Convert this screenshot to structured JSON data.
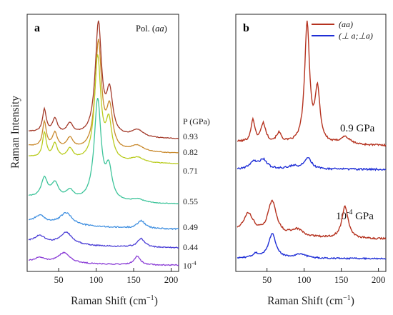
{
  "figure": {
    "y_axis_label": "Raman Intensity",
    "x_axis_unit_tail": "−1",
    "x_axis_label_main": "Raman Shift (cm",
    "x_axis_label_close": ")"
  },
  "chart_data": [
    {
      "panel": "a",
      "type": "line",
      "title": "Pol. (aa)",
      "xlabel": "Raman Shift (cm−1)",
      "ylabel": "Raman Intensity",
      "xlim": [
        8,
        210
      ],
      "x_ticks": [
        "50",
        "100",
        "150",
        "200"
      ],
      "pressure_header": "P (GPa)",
      "series": [
        {
          "name": "0.93",
          "color": "#a33a2a",
          "baseline": 0.93,
          "bg": 0.2,
          "noise": 0.015,
          "peaks": [
            [
              103,
              2.7,
              5
            ],
            [
              118,
              1.0,
              5
            ],
            [
              31,
              0.55,
              3
            ],
            [
              45,
              0.35,
              4
            ],
            [
              65,
              0.25,
              5
            ],
            [
              155,
              0.18,
              10
            ]
          ]
        },
        {
          "name": "0.82",
          "color": "#c98a2e",
          "baseline": 0.82,
          "bg": 0.2,
          "noise": 0.015,
          "peaks": [
            [
              103,
              2.6,
              5
            ],
            [
              118,
              0.95,
              5
            ],
            [
              31,
              0.6,
              3
            ],
            [
              45,
              0.35,
              4
            ],
            [
              65,
              0.25,
              5
            ],
            [
              155,
              0.15,
              10
            ]
          ]
        },
        {
          "name": "0.71",
          "color": "#b9cc1f",
          "baseline": 0.71,
          "bg": 0.2,
          "noise": 0.015,
          "peaks": [
            [
              102,
              2.5,
              5
            ],
            [
              117,
              0.9,
              5
            ],
            [
              31,
              0.6,
              3
            ],
            [
              45,
              0.35,
              4
            ],
            [
              65,
              0.25,
              5
            ],
            [
              155,
              0.12,
              10
            ]
          ]
        },
        {
          "name": "0.55",
          "color": "#3dc49a",
          "baseline": 0.55,
          "bg": 0.18,
          "noise": 0.015,
          "peaks": [
            [
              102,
              2.35,
              5.5
            ],
            [
              117,
              0.7,
              5
            ],
            [
              31,
              0.45,
              5
            ],
            [
              45,
              0.35,
              6
            ],
            [
              65,
              0.2,
              6
            ],
            [
              155,
              0.08,
              10
            ]
          ]
        },
        {
          "name": "0.49",
          "color": "#3f8fe0",
          "baseline": 0.49,
          "bg": 0.1,
          "noise": 0.015,
          "peaks": [
            [
              60,
              0.14,
              10
            ],
            [
              160,
              0.09,
              6
            ],
            [
              25,
              0.08,
              8
            ]
          ]
        },
        {
          "name": "0.44",
          "color": "#4b3fd6",
          "baseline": 0.44,
          "bg": 0.08,
          "noise": 0.013,
          "peaks": [
            [
              60,
              0.14,
              10
            ],
            [
              160,
              0.1,
              6
            ],
            [
              25,
              0.08,
              8
            ]
          ]
        },
        {
          "name": "10-4",
          "color": "#8a3cd6",
          "baseline": 0.0,
          "bg": 0.05,
          "noise": 0.012,
          "peaks": [
            [
              57,
              0.12,
              10
            ],
            [
              155,
              0.1,
              5
            ],
            [
              25,
              0.05,
              8
            ]
          ]
        }
      ],
      "pressure_labels": [
        "0.93",
        "0.82",
        "0.71",
        "0.55",
        "0.49",
        "0.44",
        "10"
      ],
      "last_label_exp": "-4"
    },
    {
      "panel": "b",
      "type": "line",
      "xlabel": "Raman Shift (cm−1)",
      "xlim": [
        8,
        210
      ],
      "x_ticks": [
        "50",
        "100",
        "150",
        "200"
      ],
      "legend_aa": "(aa)",
      "legend_perp_a": "(⊥ a;⊥a)",
      "label_high": "0.9 GPa",
      "label_low_base": "10",
      "label_low_exp": "-4",
      "label_low_unit": " GPa",
      "series": [
        {
          "name": "(aa) 0.9 GPa",
          "color": "#b5321f",
          "peaks": [
            [
              104,
              3.2,
              4
            ],
            [
              118,
              1.4,
              4
            ],
            [
              31,
              0.6,
              3
            ],
            [
              45,
              0.5,
              4
            ],
            [
              66,
              0.25,
              4
            ],
            [
              155,
              0.2,
              8
            ]
          ]
        },
        {
          "name": "(⊥ a;⊥a) 0.9 GPa",
          "color": "#1f2fd6",
          "peaks": [
            [
              105,
              0.3,
              6
            ],
            [
              32,
              0.2,
              6
            ],
            [
              45,
              0.25,
              6
            ],
            [
              85,
              0.08,
              8
            ]
          ]
        },
        {
          "name": "(aa) 10-4 GPa",
          "color": "#b5321f",
          "peaks": [
            [
              57,
              0.95,
              7
            ],
            [
              25,
              0.55,
              8
            ],
            [
              155,
              0.9,
              5
            ],
            [
              90,
              0.2,
              10
            ]
          ]
        },
        {
          "name": "(⊥ a;⊥a) 10-4 GPa",
          "color": "#1f2fd6",
          "peaks": [
            [
              57,
              0.9,
              6
            ],
            [
              35,
              0.15,
              6
            ],
            [
              95,
              0.15,
              10
            ]
          ]
        }
      ]
    }
  ]
}
